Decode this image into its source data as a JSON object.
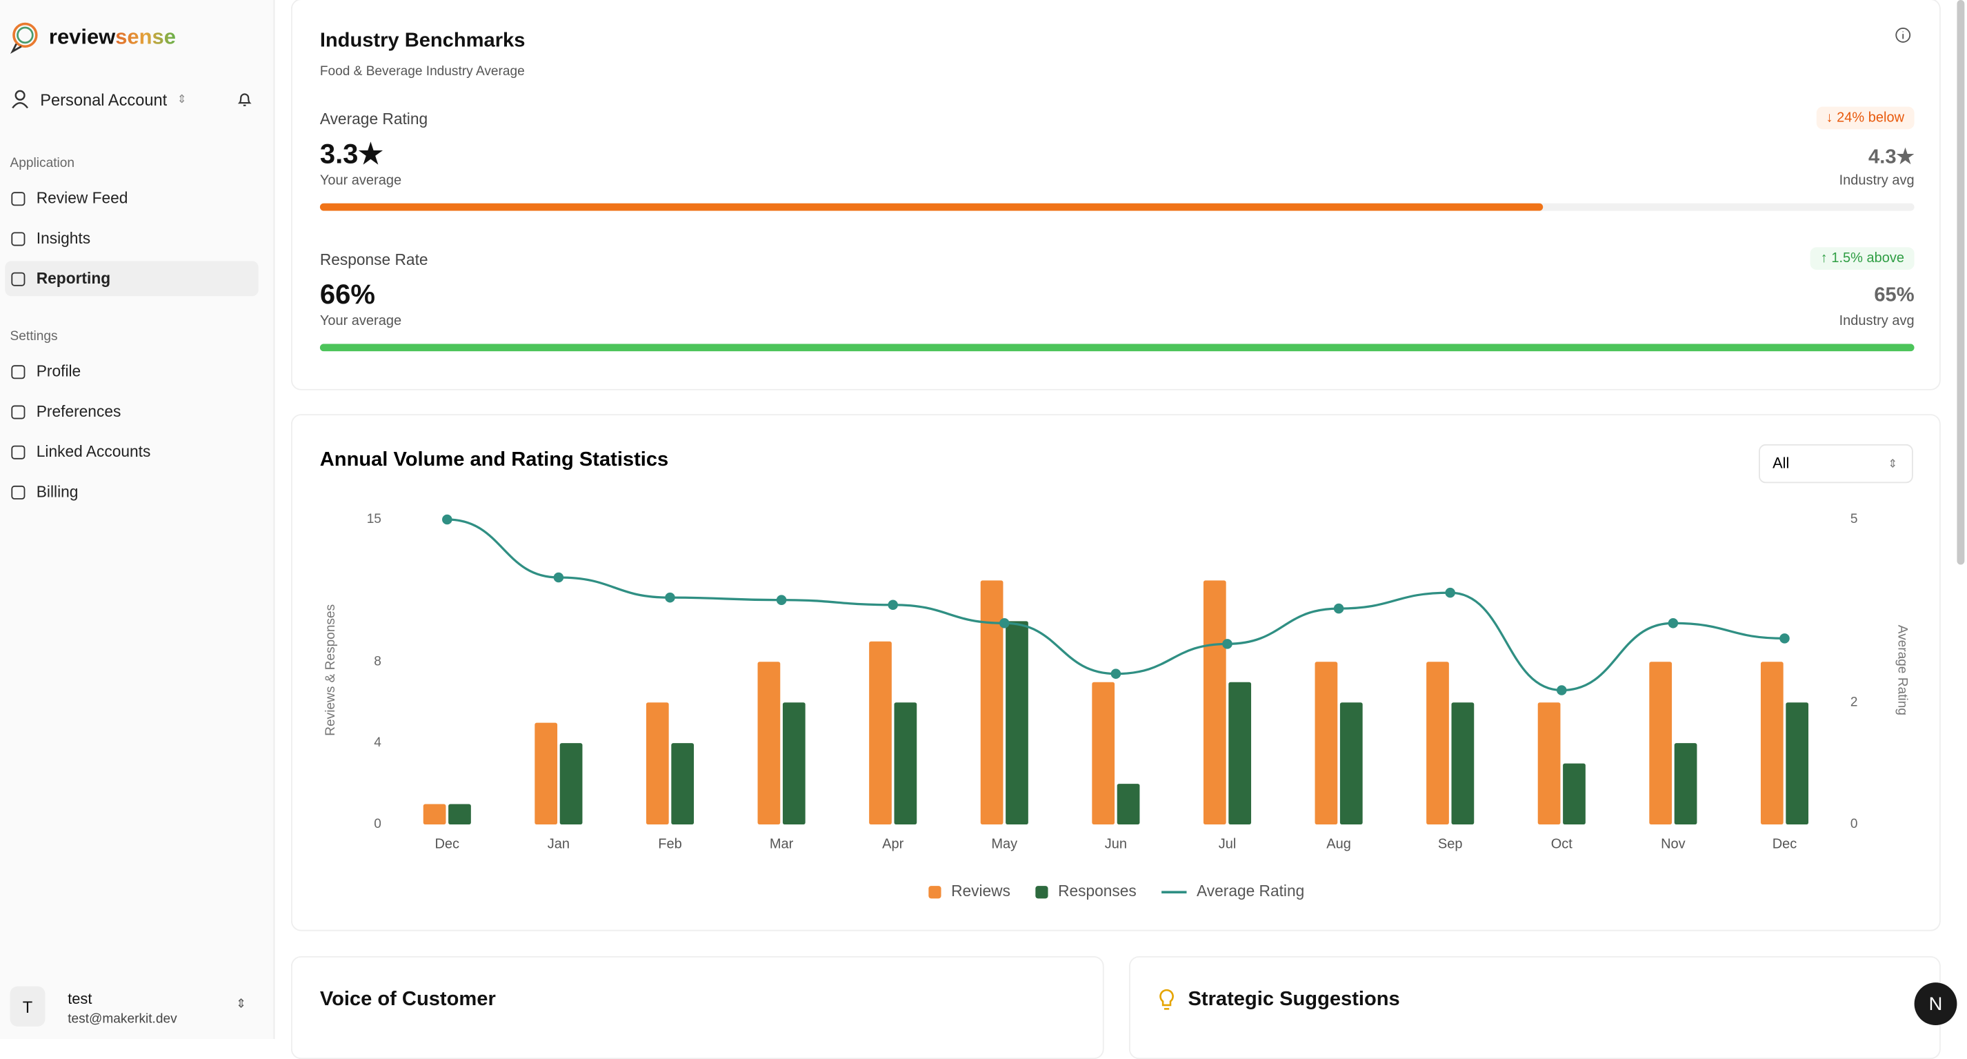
{
  "sidebar": {
    "brand": {
      "first": "review",
      "second": "sense"
    },
    "account": "Personal Account",
    "sections": [
      {
        "title": "Application",
        "items": [
          "Review Feed",
          "Insights",
          "Reporting"
        ]
      },
      {
        "title": "Settings",
        "items": [
          "Profile",
          "Preferences",
          "Linked Accounts",
          "Billing"
        ]
      }
    ],
    "user": {
      "initial": "T",
      "name": "test",
      "email": "test@makerkit.dev"
    }
  },
  "benchmarks": {
    "title": "Industry Benchmarks",
    "subtitle": "Food & Beverage Industry Average",
    "metrics": [
      {
        "label": "Average Rating",
        "badge": "24% below",
        "your": {
          "value": 3.3,
          "label": "3.3"
        },
        "your_label": "Your average",
        "industry": {
          "value": 4.3,
          "label": "4.3"
        },
        "industry_label": "Industry avg"
      },
      {
        "label": "Response Rate",
        "badge": "1.5% above",
        "your": {
          "value": 66,
          "label": "66%"
        },
        "your_label": "Your average",
        "industry": {
          "value": 65,
          "label": "65%"
        },
        "industry_label": "Industry avg"
      }
    ]
  },
  "chart_data": {
    "type": "bar",
    "title": "Annual Volume and Rating Statistics",
    "filter": "All",
    "categories": [
      "Dec",
      "Jan",
      "Feb",
      "Mar",
      "Apr",
      "May",
      "Jun",
      "Jul",
      "Aug",
      "Sep",
      "Oct",
      "Nov",
      "Dec"
    ],
    "series": [
      {
        "name": "Reviews",
        "color": "#f28c38",
        "values": [
          1,
          5,
          6,
          8,
          9,
          12,
          7,
          12,
          8,
          8,
          6,
          8,
          8
        ]
      },
      {
        "name": "Responses",
        "color": "#2d6a3e",
        "values": [
          1,
          4,
          4,
          6,
          6,
          10,
          2,
          7,
          6,
          6,
          3,
          4,
          6
        ]
      },
      {
        "name": "Average Rating",
        "color": "#2f8f83",
        "type": "line",
        "axis": "y2",
        "values": [
          5,
          4.05,
          3.72,
          3.68,
          3.6,
          3.3,
          2.47,
          2.96,
          3.54,
          3.8,
          2.2,
          3.3,
          3.05
        ]
      }
    ],
    "ylabel": "Reviews & Responses",
    "y2label": "Average Rating",
    "ylim": [
      0,
      15
    ],
    "yticks": [
      0,
      4,
      8,
      15
    ],
    "y2lim": [
      0,
      5
    ],
    "y2ticks": [
      0,
      2,
      5
    ],
    "grid": false
  },
  "cards": {
    "voice": "Voice of Customer",
    "strategic": "Strategic Suggestions"
  }
}
